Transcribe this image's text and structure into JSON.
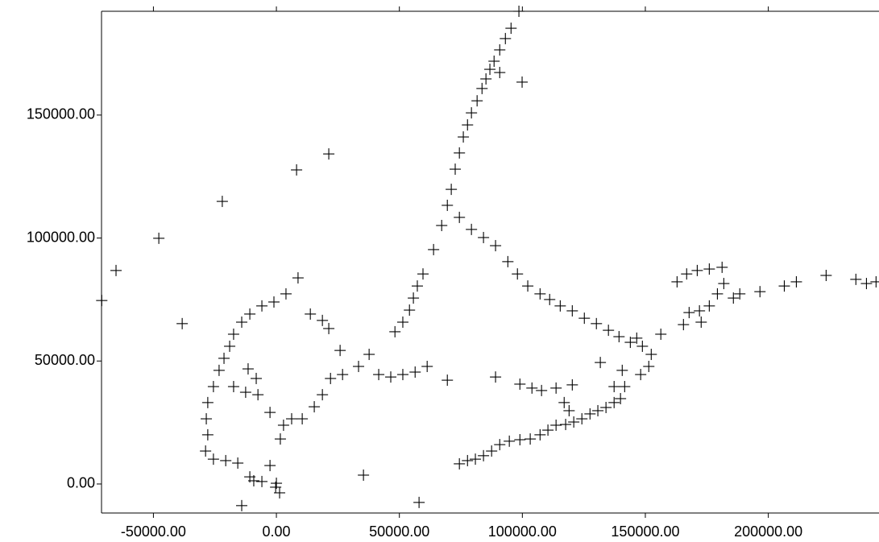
{
  "chart_data": {
    "type": "scatter",
    "color": "#000000",
    "xlim": [
      -71100,
      245000
    ],
    "ylim": [
      -11800,
      192200
    ],
    "xticks": [
      {
        "value": -50000,
        "label": "-50000.00"
      },
      {
        "value": 0,
        "label": "0.00"
      },
      {
        "value": 50000,
        "label": "50000.00"
      },
      {
        "value": 100000,
        "label": "100000.00"
      },
      {
        "value": 150000,
        "label": "150000.00"
      },
      {
        "value": 200000,
        "label": "200000.00"
      }
    ],
    "yticks": [
      {
        "value": 0,
        "label": "0.00"
      },
      {
        "value": 50000,
        "label": "50000.00"
      },
      {
        "value": 100000,
        "label": "100000.00"
      },
      {
        "value": 150000,
        "label": "150000.00"
      }
    ],
    "x": [
      -71000,
      -65200,
      -47800,
      -38300,
      -22000,
      8200,
      21300,
      -14100,
      35400,
      58000,
      69500,
      98600,
      8800,
      3900,
      -1000,
      -5900,
      -10800,
      -14100,
      -17400,
      -19000,
      -21300,
      -23300,
      -25600,
      -27900,
      -28500,
      -27900,
      -28800,
      -25600,
      -20600,
      -15700,
      -10800,
      -5900,
      -2600,
      1600,
      2900,
      6200,
      10500,
      15400,
      18700,
      22000,
      26900,
      33400,
      37700,
      41600,
      46500,
      51400,
      56400,
      61300,
      48200,
      51400,
      54100,
      55700,
      57300,
      59600,
      63900,
      67200,
      13800,
      18700,
      21300,
      25900,
      -17400,
      -12500,
      -7500,
      -8200,
      -11500,
      -2600,
      0,
      1300,
      -300,
      -9200,
      69500,
      71100,
      72700,
      74400,
      76000,
      77700,
      79300,
      81600,
      83600,
      85200,
      86800,
      88500,
      90800,
      93100,
      95400,
      99900,
      90800,
      74400,
      79300,
      84200,
      89100,
      94100,
      98000,
      102200,
      107200,
      111100,
      115400,
      120300,
      125200,
      130100,
      135000,
      139300,
      143900,
      148800,
      152400,
      156300,
      162900,
      166800,
      171100,
      176000,
      181200,
      181900,
      179300,
      176000,
      172000,
      167800,
      165500,
      172700,
      185800,
      188400,
      196600,
      206500,
      211400,
      223500,
      235600,
      239900,
      243800,
      74400,
      77700,
      80900,
      84200,
      87500,
      90800,
      94700,
      99000,
      103200,
      107200,
      110400,
      113700,
      117600,
      120900,
      124200,
      127500,
      130700,
      134000,
      137300,
      139900,
      141600,
      140600,
      137300,
      131700,
      146500,
      151400,
      148100,
      120300,
      117000,
      119000,
      113700,
      107800,
      103900,
      99000,
      89100
    ],
    "y": [
      74600,
      86800,
      99900,
      65200,
      114900,
      127700,
      134200,
      -8800,
      3600,
      -7500,
      42200,
      192200,
      83800,
      77300,
      74000,
      72400,
      69100,
      65800,
      60900,
      56000,
      51100,
      46200,
      39600,
      33100,
      26500,
      20000,
      13400,
      10100,
      9500,
      8500,
      2900,
      1000,
      7500,
      18300,
      23900,
      26500,
      26500,
      31400,
      36300,
      42900,
      44500,
      47800,
      52700,
      44500,
      43500,
      44500,
      45500,
      47800,
      61900,
      65800,
      70700,
      75600,
      80500,
      85400,
      95300,
      105100,
      69100,
      66500,
      63200,
      54300,
      39600,
      37300,
      36300,
      42900,
      46800,
      29100,
      300,
      -3600,
      -1300,
      1300,
      113300,
      119800,
      128000,
      134600,
      141100,
      146000,
      150900,
      155800,
      160800,
      164700,
      168600,
      171900,
      176500,
      181100,
      185300,
      163400,
      167300,
      108400,
      103500,
      100200,
      96900,
      90400,
      85400,
      80500,
      77300,
      75000,
      72400,
      70400,
      67400,
      65200,
      62500,
      59900,
      57600,
      56000,
      52700,
      60900,
      82200,
      85400,
      86800,
      87400,
      88100,
      81500,
      77300,
      72400,
      70400,
      69700,
      64800,
      65800,
      75600,
      77300,
      78200,
      80500,
      82200,
      84800,
      83200,
      81500,
      82200,
      8200,
      9500,
      10100,
      11500,
      13400,
      16000,
      17400,
      18000,
      18300,
      20000,
      21900,
      23900,
      24200,
      25200,
      26500,
      28500,
      29800,
      31100,
      33100,
      34700,
      39600,
      46200,
      39600,
      49400,
      59300,
      47800,
      44500,
      40300,
      33100,
      29800,
      39000,
      38000,
      39000,
      40600,
      43500
    ]
  }
}
